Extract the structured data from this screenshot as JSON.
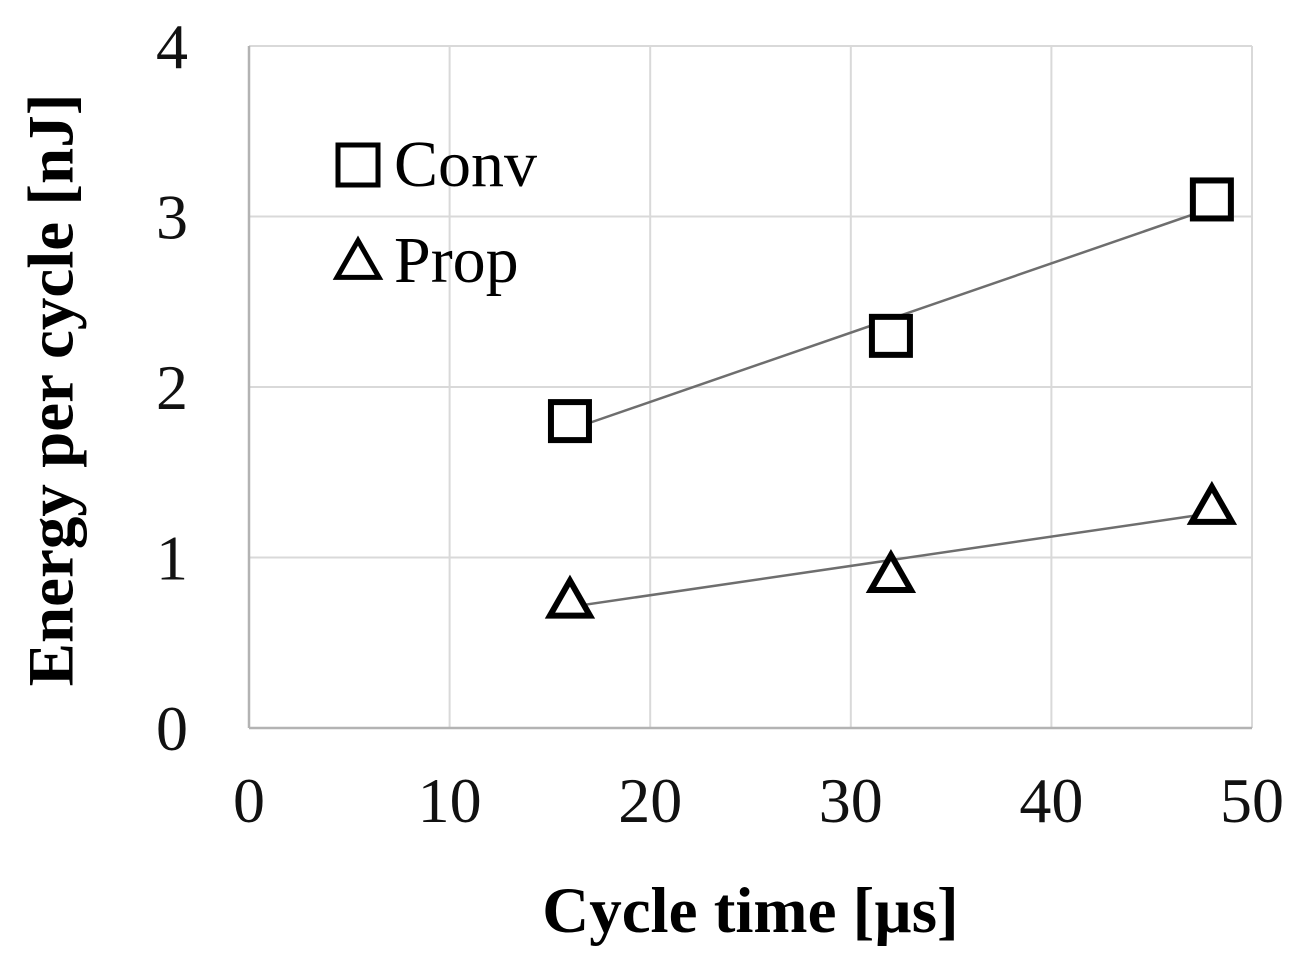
{
  "chart_data": {
    "type": "scatter",
    "title": "",
    "xlabel": "Cycle time [µs]",
    "ylabel": "Energy per cycle [nJ]",
    "xlim": [
      0,
      50
    ],
    "ylim": [
      0,
      4
    ],
    "xticks": [
      0,
      10,
      20,
      30,
      40,
      50
    ],
    "yticks": [
      0,
      1,
      2,
      3,
      4
    ],
    "grid": true,
    "legend_position": "upper-left-inside",
    "series": [
      {
        "name": "Conv",
        "marker": "square",
        "x": [
          16,
          32,
          48
        ],
        "y": [
          1.8,
          2.3,
          3.1
        ],
        "trendline": {
          "x": [
            16,
            48
          ],
          "y": [
            1.75,
            3.05
          ]
        }
      },
      {
        "name": "Prop",
        "marker": "triangle",
        "x": [
          16,
          32,
          48
        ],
        "y": [
          0.75,
          0.9,
          1.3
        ],
        "trendline": {
          "x": [
            16,
            48
          ],
          "y": [
            0.71,
            1.26
          ]
        }
      }
    ],
    "colors": {
      "marker_stroke": "#000000",
      "marker_fill": "#ffffff",
      "trendline": "#6e6e6e",
      "gridline": "#d9d9d9",
      "axis_line": "#b3b3b3",
      "text": "#000000",
      "background": "#ffffff"
    }
  }
}
